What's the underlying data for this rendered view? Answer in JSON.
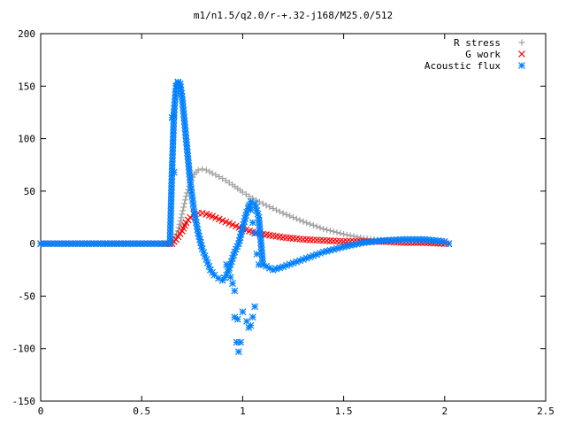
{
  "chart_data": {
    "type": "scatter",
    "title": "m1/n1.5/q2.0/r-+.32-j168/M25.0/512",
    "xlabel": "",
    "ylabel": "",
    "xlim": [
      0,
      2.5
    ],
    "ylim": [
      -150,
      200
    ],
    "x_ticks": [
      "0",
      "0.5",
      "1",
      "1.5",
      "2",
      "2.5"
    ],
    "y_ticks": [
      "-150",
      "-100",
      "-50",
      "0",
      "50",
      "100",
      "150",
      "200"
    ],
    "grid": false,
    "legend_position": "top-right",
    "series": [
      {
        "name": "R stress",
        "marker": "plus",
        "color": "#a0a0a0",
        "x": [
          0.0,
          0.3,
          0.6,
          0.65,
          0.68,
          0.7,
          0.72,
          0.74,
          0.76,
          0.78,
          0.8,
          0.82,
          0.85,
          0.9,
          0.95,
          1.0,
          1.05,
          1.1,
          1.2,
          1.3,
          1.4,
          1.5,
          1.6,
          1.7,
          1.8,
          1.9,
          2.0,
          2.02
        ],
        "y": [
          0,
          0,
          0,
          0,
          12,
          28,
          45,
          58,
          66,
          70,
          71,
          70,
          67,
          62,
          56,
          49,
          43,
          38,
          29,
          21,
          14,
          9,
          5,
          3,
          2,
          1,
          0,
          0
        ]
      },
      {
        "name": "G work",
        "marker": "x",
        "color": "#ff0000",
        "x": [
          0.0,
          0.3,
          0.6,
          0.65,
          0.67,
          0.7,
          0.72,
          0.74,
          0.76,
          0.78,
          0.8,
          0.82,
          0.85,
          0.9,
          0.95,
          1.0,
          1.05,
          1.1,
          1.2,
          1.3,
          1.4,
          1.5,
          1.6,
          1.7,
          1.8,
          1.9,
          2.0,
          2.02
        ],
        "y": [
          0,
          0,
          0,
          0,
          4,
          12,
          20,
          25,
          28,
          29,
          29,
          28,
          26,
          22,
          18,
          14,
          11,
          9,
          6,
          4,
          3,
          2,
          2,
          2,
          1,
          1,
          0,
          0
        ]
      },
      {
        "name": "Acoustic flux",
        "marker": "asterisk",
        "color": "#0080ff",
        "x": [
          0.0,
          0.3,
          0.6,
          0.64,
          0.65,
          0.66,
          0.67,
          0.68,
          0.69,
          0.7,
          0.71,
          0.72,
          0.73,
          0.74,
          0.75,
          0.76,
          0.78,
          0.8,
          0.82,
          0.84,
          0.86,
          0.88,
          0.9,
          0.92,
          0.94,
          0.96,
          0.98,
          1.0,
          1.02,
          1.04,
          1.06,
          1.08,
          1.1,
          1.15,
          1.2,
          1.3,
          1.4,
          1.5,
          1.6,
          1.7,
          1.8,
          1.9,
          2.0,
          2.02,
          0.65,
          0.66,
          0.67,
          0.68,
          0.69,
          0.66,
          0.97,
          0.98,
          0.99,
          0.96,
          0.975,
          1.0,
          1.02,
          1.03,
          1.04,
          1.05,
          1.06,
          0.92,
          0.93,
          0.94,
          0.95,
          0.96,
          1.03,
          1.04,
          1.05,
          1.06,
          1.07,
          1.08
        ],
        "y": [
          0,
          0,
          0,
          0,
          68,
          125,
          148,
          153,
          152,
          140,
          120,
          100,
          80,
          60,
          45,
          30,
          10,
          -5,
          -15,
          -25,
          -30,
          -33,
          -35,
          -30,
          -20,
          -8,
          0,
          15,
          30,
          40,
          38,
          25,
          -20,
          -25,
          -22,
          -15,
          -8,
          -3,
          1,
          3,
          4,
          4,
          2,
          0,
          120,
          122,
          150,
          154,
          152,
          68,
          -94,
          -103,
          -94,
          -70,
          -72,
          -65,
          -74,
          -80,
          -78,
          -70,
          -60,
          -20,
          -25,
          -32,
          -38,
          -45,
          35,
          32,
          20,
          10,
          -10,
          -20
        ]
      }
    ]
  }
}
